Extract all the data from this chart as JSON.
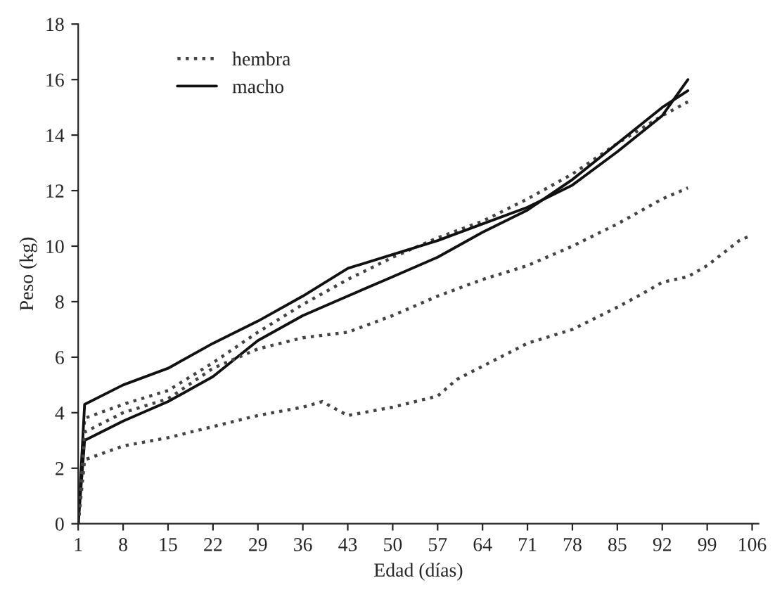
{
  "chart_data": {
    "type": "line",
    "xlabel": "Edad (días)",
    "ylabel": "Peso (kg)",
    "xlim": [
      1,
      107
    ],
    "xticks": [
      1,
      8,
      15,
      22,
      29,
      36,
      43,
      50,
      57,
      64,
      71,
      78,
      85,
      92,
      99,
      106
    ],
    "ylim": [
      0,
      18
    ],
    "yticks": [
      0,
      2,
      4,
      6,
      8,
      10,
      12,
      14,
      16,
      18
    ],
    "grid": false,
    "legend": "top left",
    "marker": "none",
    "series": [
      {
        "name": "hembra",
        "color": "#444444",
        "line_style": "dotted",
        "x": [
          1,
          2,
          8,
          15,
          22,
          29,
          36,
          43,
          50,
          57,
          64,
          71,
          78,
          85,
          92,
          96
        ],
        "values": [
          0,
          3.8,
          4.3,
          4.8,
          5.8,
          6.9,
          7.9,
          8.8,
          9.6,
          10.3,
          10.9,
          11.7,
          12.6,
          13.7,
          14.7,
          15.2
        ]
      },
      {
        "name": "macho",
        "color": "#111111",
        "line_style": "solid",
        "x": [
          1,
          2,
          8,
          15,
          22,
          29,
          36,
          43,
          50,
          57,
          64,
          71,
          78,
          85,
          92,
          96
        ],
        "values": [
          0,
          4.3,
          5.0,
          5.6,
          6.5,
          7.3,
          8.2,
          9.2,
          9.7,
          10.2,
          10.8,
          11.4,
          12.2,
          13.4,
          14.7,
          16.0
        ]
      },
      {
        "color": "#111111",
        "line_style": "solid",
        "x": [
          1,
          2,
          8,
          15,
          22,
          29,
          36,
          43,
          50,
          57,
          64,
          71,
          78,
          85,
          92,
          96
        ],
        "values": [
          0,
          3.0,
          3.7,
          4.4,
          5.3,
          6.6,
          7.5,
          8.2,
          8.9,
          9.6,
          10.5,
          11.3,
          12.4,
          13.7,
          15.0,
          15.6
        ]
      },
      {
        "color": "#444444",
        "line_style": "dotted",
        "x": [
          1,
          2,
          8,
          15,
          22,
          29,
          36,
          43,
          50,
          57,
          64,
          71,
          78,
          85,
          92,
          96
        ],
        "values": [
          0,
          3.3,
          4.0,
          4.5,
          5.6,
          6.3,
          6.7,
          6.9,
          7.5,
          8.2,
          8.8,
          9.3,
          10.0,
          10.8,
          11.7,
          12.1
        ]
      },
      {
        "color": "#444444",
        "line_style": "dotted",
        "x": [
          1,
          2,
          8,
          15,
          22,
          29,
          36,
          39,
          43,
          50,
          57,
          60,
          71,
          78,
          85,
          89,
          92,
          96,
          99,
          104,
          106
        ],
        "values": [
          0,
          2.3,
          2.8,
          3.1,
          3.5,
          3.9,
          4.2,
          4.4,
          3.9,
          4.2,
          4.6,
          5.2,
          6.5,
          7.0,
          7.8,
          8.3,
          8.7,
          8.9,
          9.3,
          10.2,
          10.4
        ]
      }
    ]
  }
}
